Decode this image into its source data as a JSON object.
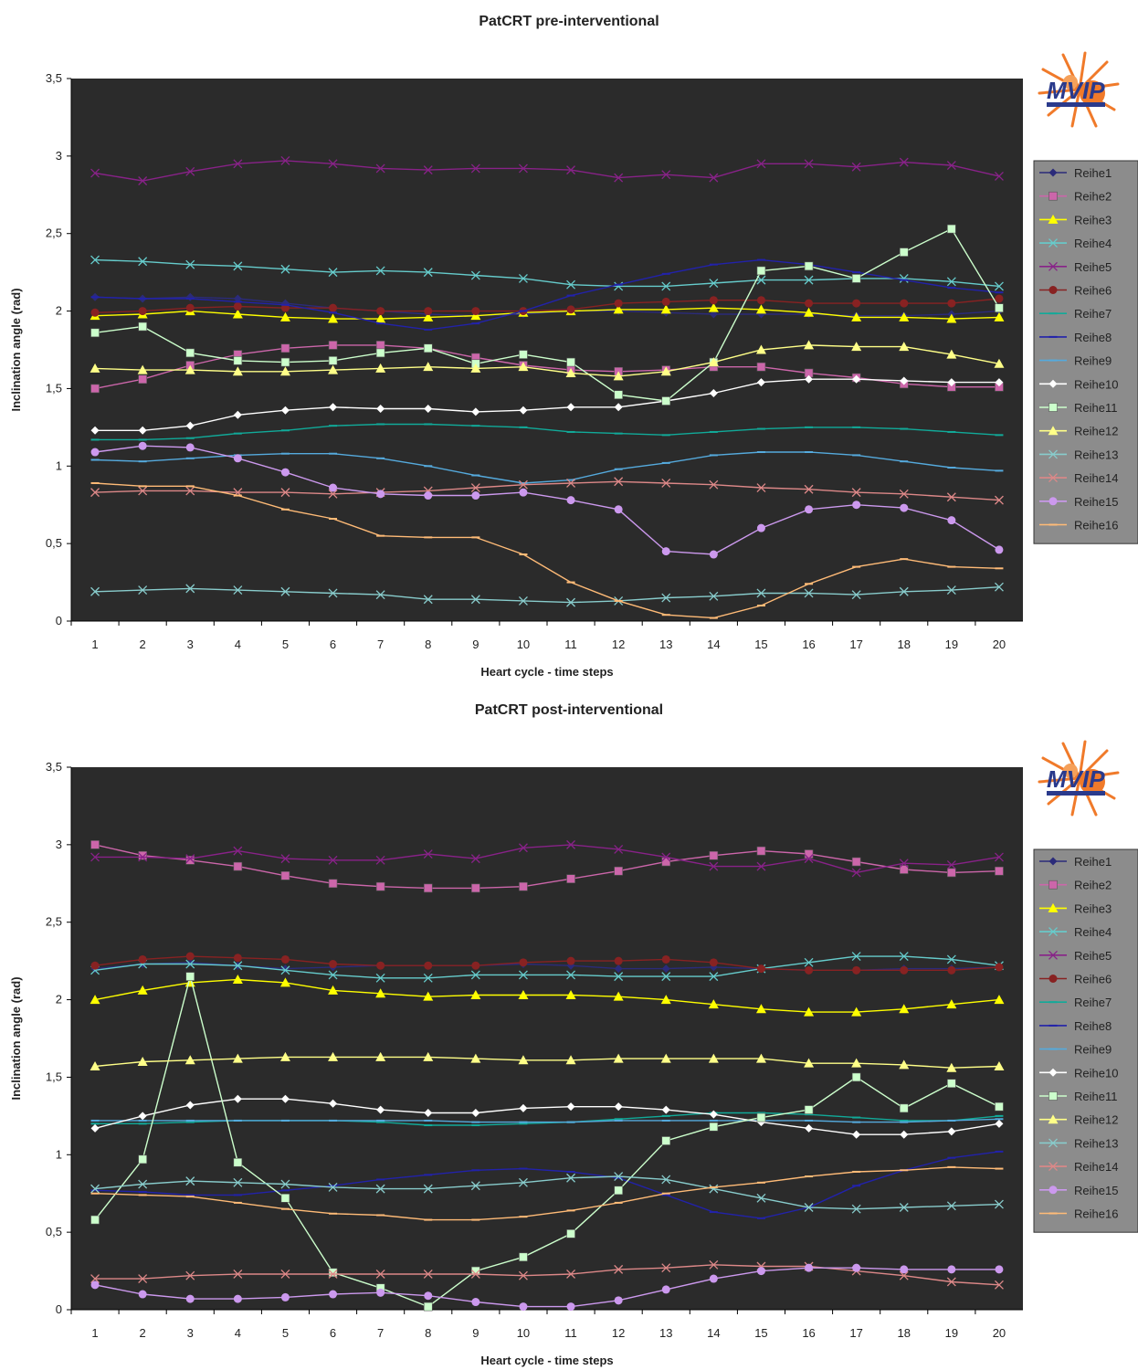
{
  "logo": {
    "text": "MVIP"
  },
  "chart_data": [
    {
      "type": "line",
      "title": "PatCRT pre-interventional",
      "xlabel": "Heart cycle - time steps",
      "ylabel": "Inclination angle (rad)",
      "ylim": [
        0,
        3.5
      ],
      "yticks": [
        "0",
        "0,5",
        "1",
        "1,5",
        "2",
        "2,5",
        "3",
        "3,5"
      ],
      "categories": [
        "1",
        "2",
        "3",
        "4",
        "5",
        "6",
        "7",
        "8",
        "9",
        "10",
        "11",
        "12",
        "13",
        "14",
        "15",
        "16",
        "17",
        "18",
        "19",
        "20"
      ],
      "grid": false,
      "plot_background": "#2b2b2b",
      "legend_position": "right",
      "series": [
        {
          "name": "Reihe1",
          "color": "#2b2b7a",
          "marker": "diamond",
          "values": [
            2.09,
            2.08,
            2.09,
            2.08,
            2.05,
            2.02,
            2.0,
            1.98,
            1.97,
            1.98,
            2.0,
            2.0,
            1.99,
            1.98,
            1.98,
            1.98,
            1.97,
            1.97,
            1.98,
            2.0
          ]
        },
        {
          "name": "Reihe2",
          "color": "#cc66aa",
          "marker": "square",
          "values": [
            1.5,
            1.56,
            1.65,
            1.72,
            1.76,
            1.78,
            1.78,
            1.76,
            1.7,
            1.65,
            1.62,
            1.61,
            1.62,
            1.64,
            1.64,
            1.6,
            1.57,
            1.53,
            1.51,
            1.51
          ]
        },
        {
          "name": "Reihe3",
          "color": "#ffff00",
          "marker": "triangle",
          "values": [
            1.97,
            1.98,
            2.0,
            1.98,
            1.96,
            1.95,
            1.95,
            1.96,
            1.97,
            1.99,
            2.0,
            2.01,
            2.01,
            2.02,
            2.01,
            1.99,
            1.96,
            1.96,
            1.95,
            1.96
          ]
        },
        {
          "name": "Reihe4",
          "color": "#66cccc",
          "marker": "x",
          "values": [
            2.33,
            2.32,
            2.3,
            2.29,
            2.27,
            2.25,
            2.26,
            2.25,
            2.23,
            2.21,
            2.17,
            2.16,
            2.16,
            2.18,
            2.2,
            2.2,
            2.21,
            2.21,
            2.19,
            2.16
          ]
        },
        {
          "name": "Reihe5",
          "color": "#882288",
          "marker": "x",
          "values": [
            2.89,
            2.84,
            2.9,
            2.95,
            2.97,
            2.95,
            2.92,
            2.91,
            2.92,
            2.92,
            2.91,
            2.86,
            2.88,
            2.86,
            2.95,
            2.95,
            2.93,
            2.96,
            2.94,
            2.87
          ]
        },
        {
          "name": "Reihe6",
          "color": "#882222",
          "marker": "circle",
          "values": [
            1.99,
            2.0,
            2.02,
            2.03,
            2.02,
            2.02,
            2.0,
            2.0,
            2.0,
            2.0,
            2.01,
            2.05,
            2.06,
            2.07,
            2.07,
            2.05,
            2.05,
            2.05,
            2.05,
            2.08
          ]
        },
        {
          "name": "Reihe7",
          "color": "#11aa99",
          "marker": "dash",
          "values": [
            1.17,
            1.17,
            1.18,
            1.21,
            1.23,
            1.26,
            1.27,
            1.27,
            1.26,
            1.25,
            1.22,
            1.21,
            1.2,
            1.22,
            1.24,
            1.25,
            1.25,
            1.24,
            1.22,
            1.2
          ]
        },
        {
          "name": "Reihe8",
          "color": "#2222aa",
          "marker": "dash",
          "values": [
            2.09,
            2.08,
            2.08,
            2.06,
            2.04,
            1.99,
            1.92,
            1.88,
            1.92,
            2.0,
            2.1,
            2.17,
            2.24,
            2.3,
            2.33,
            2.3,
            2.25,
            2.2,
            2.15,
            2.12
          ]
        },
        {
          "name": "Reihe9",
          "color": "#55aadd",
          "marker": "dash",
          "values": [
            1.04,
            1.03,
            1.05,
            1.07,
            1.08,
            1.08,
            1.05,
            1.0,
            0.94,
            0.89,
            0.91,
            0.98,
            1.02,
            1.07,
            1.09,
            1.09,
            1.07,
            1.03,
            0.99,
            0.97
          ]
        },
        {
          "name": "Reihe10",
          "color": "#ffffff",
          "marker": "diamond",
          "values": [
            1.23,
            1.23,
            1.26,
            1.33,
            1.36,
            1.38,
            1.37,
            1.37,
            1.35,
            1.36,
            1.38,
            1.38,
            1.42,
            1.47,
            1.54,
            1.56,
            1.56,
            1.55,
            1.54,
            1.54
          ]
        },
        {
          "name": "Reihe11",
          "color": "#ccffcc",
          "marker": "square",
          "values": [
            1.86,
            1.9,
            1.73,
            1.68,
            1.67,
            1.68,
            1.73,
            1.76,
            1.66,
            1.72,
            1.67,
            1.46,
            1.42,
            1.67,
            2.26,
            2.29,
            2.21,
            2.38,
            2.53,
            2.02
          ]
        },
        {
          "name": "Reihe12",
          "color": "#ffff88",
          "marker": "triangle",
          "values": [
            1.63,
            1.62,
            1.62,
            1.61,
            1.61,
            1.62,
            1.63,
            1.64,
            1.63,
            1.64,
            1.6,
            1.58,
            1.61,
            1.67,
            1.75,
            1.78,
            1.77,
            1.77,
            1.72,
            1.66
          ]
        },
        {
          "name": "Reihe13",
          "color": "#88cccc",
          "marker": "x",
          "values": [
            0.19,
            0.2,
            0.21,
            0.2,
            0.19,
            0.18,
            0.17,
            0.14,
            0.14,
            0.13,
            0.12,
            0.13,
            0.15,
            0.16,
            0.18,
            0.18,
            0.17,
            0.19,
            0.2,
            0.22
          ]
        },
        {
          "name": "Reihe14",
          "color": "#dd8888",
          "marker": "x",
          "values": [
            0.83,
            0.84,
            0.84,
            0.83,
            0.83,
            0.82,
            0.83,
            0.84,
            0.86,
            0.88,
            0.89,
            0.9,
            0.89,
            0.88,
            0.86,
            0.85,
            0.83,
            0.82,
            0.8,
            0.78
          ]
        },
        {
          "name": "Reihe15",
          "color": "#cc99ee",
          "marker": "circle",
          "values": [
            1.09,
            1.13,
            1.12,
            1.05,
            0.96,
            0.86,
            0.82,
            0.81,
            0.81,
            0.83,
            0.78,
            0.72,
            0.45,
            0.43,
            0.6,
            0.72,
            0.75,
            0.73,
            0.65,
            0.46
          ]
        },
        {
          "name": "Reihe16",
          "color": "#ffbb77",
          "marker": "dash",
          "values": [
            0.89,
            0.87,
            0.87,
            0.81,
            0.72,
            0.66,
            0.55,
            0.54,
            0.54,
            0.43,
            0.25,
            0.13,
            0.04,
            0.02,
            0.1,
            0.24,
            0.35,
            0.4,
            0.35,
            0.34
          ]
        }
      ]
    },
    {
      "type": "line",
      "title": "PatCRT post-interventional",
      "xlabel": "Heart cycle - time steps",
      "ylabel": "Inclination angle (rad)",
      "ylim": [
        0,
        3.5
      ],
      "yticks": [
        "0",
        "0,5",
        "1",
        "1,5",
        "2",
        "2,5",
        "3",
        "3,5"
      ],
      "categories": [
        "1",
        "2",
        "3",
        "4",
        "5",
        "6",
        "7",
        "8",
        "9",
        "10",
        "11",
        "12",
        "13",
        "14",
        "15",
        "16",
        "17",
        "18",
        "19",
        "20"
      ],
      "grid": false,
      "plot_background": "#2b2b2b",
      "legend_position": "right",
      "series": [
        {
          "name": "Reihe1",
          "color": "#2b2b7a",
          "marker": "diamond",
          "values": [
            2.2,
            2.23,
            2.24,
            2.22,
            2.2,
            2.21,
            2.22,
            2.22,
            2.22,
            2.23,
            2.22,
            2.2,
            2.2,
            2.21,
            2.2,
            2.19,
            2.19,
            2.2,
            2.2,
            2.21
          ]
        },
        {
          "name": "Reihe2",
          "color": "#cc66aa",
          "marker": "square",
          "values": [
            3.0,
            2.93,
            2.9,
            2.86,
            2.8,
            2.75,
            2.73,
            2.72,
            2.72,
            2.73,
            2.78,
            2.83,
            2.89,
            2.93,
            2.96,
            2.94,
            2.89,
            2.84,
            2.82,
            2.83
          ]
        },
        {
          "name": "Reihe3",
          "color": "#ffff00",
          "marker": "triangle",
          "values": [
            2.0,
            2.06,
            2.11,
            2.13,
            2.11,
            2.06,
            2.04,
            2.02,
            2.03,
            2.03,
            2.03,
            2.02,
            2.0,
            1.97,
            1.94,
            1.92,
            1.92,
            1.94,
            1.97,
            2.0
          ]
        },
        {
          "name": "Reihe4",
          "color": "#66cccc",
          "marker": "x",
          "values": [
            2.19,
            2.23,
            2.23,
            2.22,
            2.19,
            2.16,
            2.14,
            2.14,
            2.16,
            2.16,
            2.16,
            2.15,
            2.15,
            2.15,
            2.2,
            2.24,
            2.28,
            2.28,
            2.26,
            2.22
          ]
        },
        {
          "name": "Reihe5",
          "color": "#882288",
          "marker": "x",
          "values": [
            2.92,
            2.92,
            2.91,
            2.96,
            2.91,
            2.9,
            2.9,
            2.94,
            2.91,
            2.98,
            3.0,
            2.97,
            2.92,
            2.86,
            2.86,
            2.91,
            2.82,
            2.88,
            2.87,
            2.92
          ]
        },
        {
          "name": "Reihe6",
          "color": "#882222",
          "marker": "circle",
          "values": [
            2.22,
            2.26,
            2.28,
            2.27,
            2.26,
            2.23,
            2.22,
            2.22,
            2.22,
            2.24,
            2.25,
            2.25,
            2.26,
            2.24,
            2.2,
            2.19,
            2.19,
            2.19,
            2.19,
            2.21
          ]
        },
        {
          "name": "Reihe7",
          "color": "#11aa99",
          "marker": "dash",
          "values": [
            1.2,
            1.2,
            1.21,
            1.22,
            1.22,
            1.22,
            1.21,
            1.19,
            1.19,
            1.2,
            1.21,
            1.23,
            1.25,
            1.27,
            1.27,
            1.26,
            1.24,
            1.22,
            1.22,
            1.25
          ]
        },
        {
          "name": "Reihe8",
          "color": "#2222aa",
          "marker": "dash",
          "values": [
            0.77,
            0.76,
            0.74,
            0.74,
            0.77,
            0.8,
            0.84,
            0.87,
            0.9,
            0.91,
            0.89,
            0.85,
            0.74,
            0.63,
            0.59,
            0.66,
            0.8,
            0.9,
            0.98,
            1.02
          ]
        },
        {
          "name": "Reihe9",
          "color": "#55aadd",
          "marker": "dash",
          "values": [
            1.22,
            1.22,
            1.22,
            1.22,
            1.22,
            1.22,
            1.22,
            1.22,
            1.21,
            1.21,
            1.21,
            1.22,
            1.22,
            1.22,
            1.22,
            1.22,
            1.21,
            1.21,
            1.22,
            1.23
          ]
        },
        {
          "name": "Reihe10",
          "color": "#ffffff",
          "marker": "diamond",
          "values": [
            1.17,
            1.25,
            1.32,
            1.36,
            1.36,
            1.33,
            1.29,
            1.27,
            1.27,
            1.3,
            1.31,
            1.31,
            1.29,
            1.26,
            1.21,
            1.17,
            1.13,
            1.13,
            1.15,
            1.2
          ]
        },
        {
          "name": "Reihe11",
          "color": "#ccffcc",
          "marker": "square",
          "values": [
            0.58,
            0.97,
            2.15,
            0.95,
            0.72,
            0.24,
            0.14,
            0.02,
            0.25,
            0.34,
            0.49,
            0.77,
            1.09,
            1.18,
            1.24,
            1.29,
            1.5,
            1.3,
            1.46,
            1.31
          ]
        },
        {
          "name": "Reihe12",
          "color": "#ffff88",
          "marker": "triangle",
          "values": [
            1.57,
            1.6,
            1.61,
            1.62,
            1.63,
            1.63,
            1.63,
            1.63,
            1.62,
            1.61,
            1.61,
            1.62,
            1.62,
            1.62,
            1.62,
            1.59,
            1.59,
            1.58,
            1.56,
            1.57
          ]
        },
        {
          "name": "Reihe13",
          "color": "#88cccc",
          "marker": "x",
          "values": [
            0.78,
            0.81,
            0.83,
            0.82,
            0.81,
            0.79,
            0.78,
            0.78,
            0.8,
            0.82,
            0.85,
            0.86,
            0.84,
            0.78,
            0.72,
            0.66,
            0.65,
            0.66,
            0.67,
            0.68
          ]
        },
        {
          "name": "Reihe14",
          "color": "#dd8888",
          "marker": "x",
          "values": [
            0.2,
            0.2,
            0.22,
            0.23,
            0.23,
            0.23,
            0.23,
            0.23,
            0.23,
            0.22,
            0.23,
            0.26,
            0.27,
            0.29,
            0.28,
            0.28,
            0.25,
            0.22,
            0.18,
            0.16
          ]
        },
        {
          "name": "Reihe15",
          "color": "#cc99ee",
          "marker": "circle",
          "values": [
            0.16,
            0.1,
            0.07,
            0.07,
            0.08,
            0.1,
            0.11,
            0.09,
            0.05,
            0.02,
            0.02,
            0.06,
            0.13,
            0.2,
            0.25,
            0.27,
            0.27,
            0.26,
            0.26,
            0.26
          ]
        },
        {
          "name": "Reihe16",
          "color": "#ffbb77",
          "marker": "dash",
          "values": [
            0.75,
            0.74,
            0.73,
            0.69,
            0.65,
            0.62,
            0.61,
            0.58,
            0.58,
            0.6,
            0.64,
            0.69,
            0.75,
            0.79,
            0.82,
            0.86,
            0.89,
            0.9,
            0.92,
            0.91
          ]
        }
      ]
    }
  ]
}
